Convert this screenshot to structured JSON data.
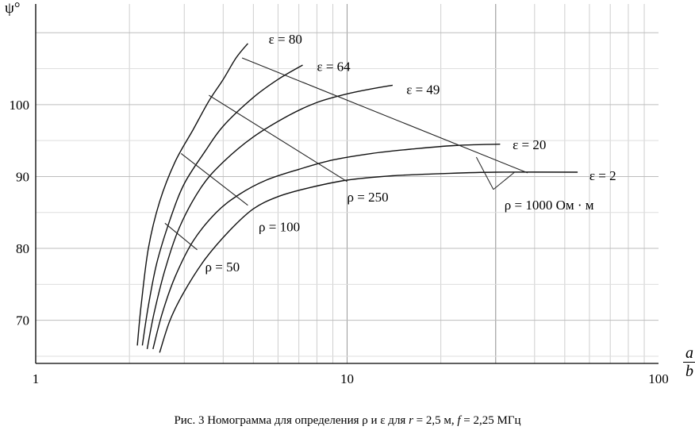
{
  "chart_data": {
    "type": "line",
    "x_scale": "log",
    "xlim": [
      1,
      100
    ],
    "ylim": [
      64,
      114
    ],
    "xticks": [
      "1",
      "10",
      "100"
    ],
    "yticks": [
      "70",
      "80",
      "90",
      "100"
    ],
    "ylabel": "ψ°",
    "xlabel_num": "a",
    "xlabel_den": "b",
    "grid": true,
    "series": [
      {
        "name": "ε = 80",
        "points": [
          [
            2.12,
            66.5
          ],
          [
            2.18,
            72
          ],
          [
            2.3,
            80
          ],
          [
            2.5,
            86.5
          ],
          [
            2.8,
            92
          ],
          [
            3.2,
            96.5
          ],
          [
            3.6,
            100.5
          ],
          [
            4.0,
            103.5
          ],
          [
            4.4,
            106.5
          ],
          [
            4.8,
            108.5
          ]
        ]
      },
      {
        "name": "ε = 64",
        "points": [
          [
            2.2,
            66.5
          ],
          [
            2.3,
            72
          ],
          [
            2.45,
            78
          ],
          [
            2.7,
            84
          ],
          [
            3.0,
            89
          ],
          [
            3.5,
            93.5
          ],
          [
            4.0,
            97
          ],
          [
            5.0,
            101
          ],
          [
            6.0,
            103.5
          ],
          [
            7.2,
            105.5
          ]
        ]
      },
      {
        "name": "ε = 49",
        "points": [
          [
            2.28,
            66
          ],
          [
            2.4,
            71
          ],
          [
            2.6,
            77
          ],
          [
            2.9,
            83
          ],
          [
            3.4,
            88.5
          ],
          [
            4.0,
            92
          ],
          [
            5.0,
            95.5
          ],
          [
            6.5,
            98.5
          ],
          [
            8.0,
            100.3
          ],
          [
            10.0,
            101.5
          ],
          [
            12.0,
            102.2
          ],
          [
            14.0,
            102.7
          ]
        ]
      },
      {
        "name": "ε = 20",
        "points": [
          [
            2.38,
            66
          ],
          [
            2.55,
            71
          ],
          [
            2.8,
            76
          ],
          [
            3.2,
            81
          ],
          [
            3.8,
            85
          ],
          [
            4.5,
            87.5
          ],
          [
            5.5,
            89.5
          ],
          [
            7.0,
            91
          ],
          [
            9.0,
            92.3
          ],
          [
            12.0,
            93.2
          ],
          [
            16.0,
            93.8
          ],
          [
            22.0,
            94.3
          ],
          [
            31.0,
            94.5
          ]
        ]
      },
      {
        "name": "ε = 2",
        "points": [
          [
            2.5,
            65.5
          ],
          [
            2.7,
            70
          ],
          [
            3.0,
            74
          ],
          [
            3.5,
            78.5
          ],
          [
            4.2,
            82.5
          ],
          [
            5.0,
            85.5
          ],
          [
            6.0,
            87.2
          ],
          [
            7.5,
            88.4
          ],
          [
            10.0,
            89.5
          ],
          [
            14.0,
            90.1
          ],
          [
            20.0,
            90.4
          ],
          [
            30.0,
            90.6
          ],
          [
            55.0,
            90.6
          ]
        ]
      }
    ],
    "isolines": [
      {
        "name": "ρ = 50",
        "points": [
          [
            2.6,
            83.5
          ],
          [
            3.3,
            79.8
          ]
        ]
      },
      {
        "name": "ρ = 100",
        "points": [
          [
            2.93,
            93.2
          ],
          [
            4.8,
            86
          ]
        ]
      },
      {
        "name": "ρ = 250",
        "points": [
          [
            3.6,
            101.3
          ],
          [
            10.0,
            89.3
          ]
        ]
      },
      {
        "name": "ρ = 1000  Ом · м",
        "points": [
          [
            4.6,
            106.5
          ],
          [
            38.0,
            90.5
          ]
        ]
      }
    ],
    "annotations": [
      {
        "text": "ε = 80",
        "x": 5.6,
        "y": 108.5
      },
      {
        "text": "ε = 64",
        "x": 8.0,
        "y": 104.7
      },
      {
        "text": "ε = 49",
        "x": 15.5,
        "y": 101.5
      },
      {
        "text": "ε = 20",
        "x": 34,
        "y": 93.8
      },
      {
        "text": "ε = 2",
        "x": 60,
        "y": 89.5
      },
      {
        "text": "ρ = 250",
        "x": 10.0,
        "y": 86.5
      },
      {
        "text": "ρ = 100",
        "x": 5.2,
        "y": 82.4
      },
      {
        "text": "ρ = 50",
        "x": 3.5,
        "y": 76.8
      },
      {
        "text": "ρ = 1000  Ом · м",
        "x": 32,
        "y": 85.4
      }
    ]
  },
  "caption": {
    "prefix": "Рис. 3 Номограмма для определения ρ и ε для ",
    "r_var": "r",
    "r_value": " = 2,5 м,  ",
    "f_var": "f",
    "f_value": " = 2,25 МГц"
  }
}
